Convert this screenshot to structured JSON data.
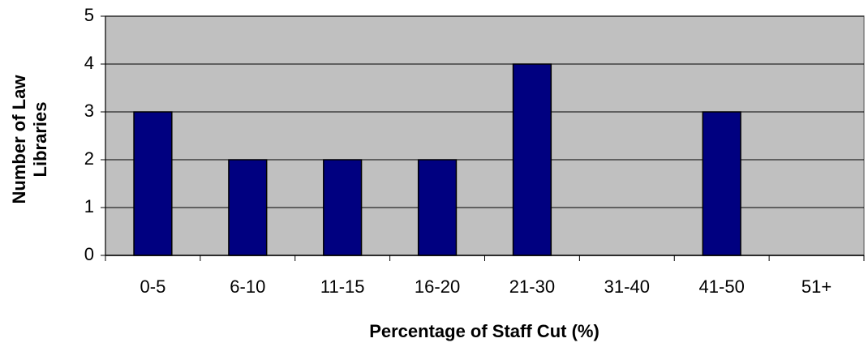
{
  "chart_data": {
    "type": "bar",
    "x_label": "Percentage of Staff Cut (%)",
    "y_label": "Number of Law Libraries",
    "categories": [
      "0-5",
      "6-10",
      "11-15",
      "16-20",
      "21-30",
      "31-40",
      "41-50",
      "51+"
    ],
    "values": [
      3,
      2,
      2,
      2,
      4,
      0,
      3,
      0
    ],
    "color": "#000080",
    "plot_background": "#c0c0c0",
    "ylim": [
      0,
      5
    ],
    "yticks": [
      0,
      1,
      2,
      3,
      4,
      5
    ],
    "grid": true
  }
}
